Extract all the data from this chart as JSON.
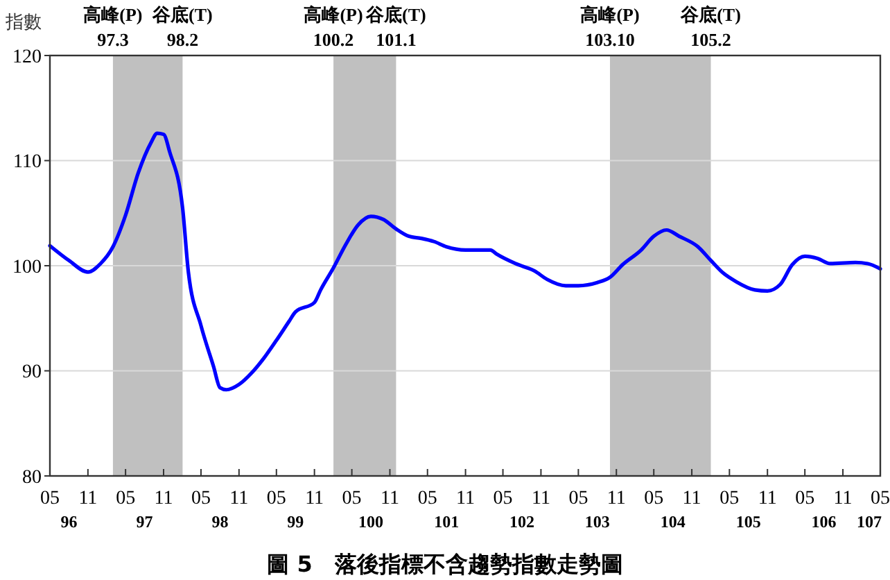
{
  "chart_data": {
    "type": "line",
    "title": "圖 5　落後指標不含趨勢指數走勢圖",
    "ylabel": "指數",
    "x": [
      "2007-05",
      "2007-08",
      "2007-11",
      "2008-01",
      "2008-03",
      "2008-05",
      "2008-07",
      "2008-09",
      "2008-10",
      "2008-11",
      "2008-12",
      "2009-02",
      "2009-03",
      "2009-05",
      "2009-07",
      "2009-08",
      "2009-09",
      "2009-11",
      "2010-01",
      "2010-03",
      "2010-05",
      "2010-07",
      "2010-08",
      "2010-11",
      "2010-12",
      "2011-02",
      "2011-04",
      "2011-06",
      "2011-08",
      "2011-10",
      "2011-12",
      "2012-02",
      "2012-04",
      "2012-06",
      "2012-08",
      "2012-11",
      "2013-03",
      "2013-04",
      "2013-07",
      "2013-10",
      "2013-12",
      "2014-03",
      "2014-05",
      "2014-08",
      "2014-10",
      "2014-12",
      "2015-03",
      "2015-05",
      "2015-07",
      "2015-09",
      "2015-12",
      "2016-02",
      "2016-04",
      "2016-06",
      "2016-09",
      "2016-11",
      "2017-01",
      "2017-03",
      "2017-05",
      "2017-07",
      "2017-09",
      "2018-01",
      "2018-03",
      "2018-05"
    ],
    "series": [
      {
        "color": "#0000ff",
        "values": [
          101.9,
          100.5,
          99.4,
          100.2,
          101.8,
          104.8,
          108.8,
          111.7,
          112.6,
          112.5,
          110.8,
          105.5,
          99.4,
          94.3,
          90.4,
          88.4,
          88.2,
          88.7,
          89.8,
          91.2,
          92.9,
          94.7,
          95.6,
          96.5,
          97.7,
          99.8,
          102.0,
          103.9,
          104.7,
          104.4,
          103.5,
          102.8,
          102.6,
          102.3,
          101.8,
          101.5,
          101.5,
          101.1,
          100.2,
          99.5,
          98.7,
          98.1,
          98.1,
          98.4,
          98.9,
          100.1,
          101.5,
          102.8,
          103.4,
          102.8,
          101.8,
          100.5,
          99.3,
          98.5,
          97.7,
          97.6,
          98.2,
          100.1,
          100.9,
          100.7,
          100.2,
          100.3,
          100.2,
          99.7
        ]
      }
    ],
    "xlim": [
      "2007-05",
      "2018-05"
    ],
    "xticks": [
      {
        "value": "2007-05",
        "label": "05"
      },
      {
        "value": "2007-11",
        "label": "11"
      },
      {
        "value": "2008-05",
        "label": "05"
      },
      {
        "value": "2008-11",
        "label": "11"
      },
      {
        "value": "2009-05",
        "label": "05"
      },
      {
        "value": "2009-11",
        "label": "11"
      },
      {
        "value": "2010-05",
        "label": "05"
      },
      {
        "value": "2010-11",
        "label": "11"
      },
      {
        "value": "2011-05",
        "label": "05"
      },
      {
        "value": "2011-11",
        "label": "11"
      },
      {
        "value": "2012-05",
        "label": "05"
      },
      {
        "value": "2012-11",
        "label": "11"
      },
      {
        "value": "2013-05",
        "label": "05"
      },
      {
        "value": "2013-11",
        "label": "11"
      },
      {
        "value": "2014-05",
        "label": "05"
      },
      {
        "value": "2014-11",
        "label": "11"
      },
      {
        "value": "2015-05",
        "label": "05"
      },
      {
        "value": "2015-11",
        "label": "11"
      },
      {
        "value": "2016-05",
        "label": "05"
      },
      {
        "value": "2016-11",
        "label": "11"
      },
      {
        "value": "2017-05",
        "label": "05"
      },
      {
        "value": "2017-11",
        "label": "11"
      },
      {
        "value": "2018-05",
        "label": "05"
      }
    ],
    "ylim": [
      80,
      120
    ],
    "yticks": [
      80,
      90,
      100,
      110,
      120
    ],
    "grid": "y",
    "line_style": "solid",
    "marker": "none",
    "bands": [
      {
        "axis": "x",
        "from": "2008-03",
        "to": "2009-02",
        "color": "#c0c0c0"
      },
      {
        "axis": "x",
        "from": "2011-02",
        "to": "2011-12",
        "color": "#c0c0c0"
      },
      {
        "axis": "x",
        "from": "2014-10",
        "to": "2016-02",
        "color": "#c0c0c0"
      }
    ],
    "annotations": [
      "高峰(P)\n97.3",
      "谷底(T)\n98.2",
      "高峰(P)\n100.2",
      "谷底(T)\n101.1",
      "高峰(P)\n103.10",
      "谷底(T)\n105.2",
      "96",
      "97",
      "98",
      "99",
      "100",
      "101",
      "102",
      "103",
      "104",
      "105",
      "106",
      "107"
    ]
  }
}
